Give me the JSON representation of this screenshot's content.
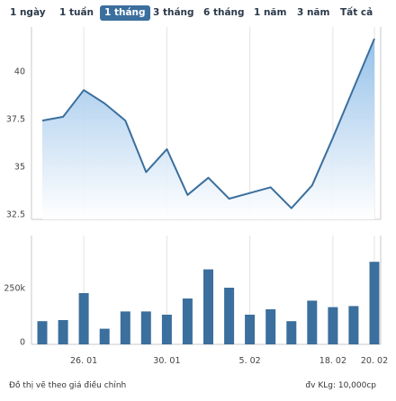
{
  "range_selector": {
    "buttons": [
      "1 ngày",
      "1 tuần",
      "1 tháng",
      "3 tháng",
      "6 tháng",
      "1 năm",
      "3 năm",
      "Tất cả"
    ],
    "active_index": 2
  },
  "colors": {
    "line": "#3b6f9d",
    "area_top": "#8fbde8",
    "area_bottom": "#ffffff",
    "bar": "#3b6f9d",
    "active_button": "#3b6f9d"
  },
  "chart_data": [
    {
      "type": "area",
      "series": [
        {
          "values": [
            37.4,
            37.6,
            39.0,
            38.3,
            37.4,
            34.7,
            35.9,
            33.5,
            34.4,
            33.3,
            33.6,
            33.9,
            32.8,
            34.0,
            36.5,
            39.1,
            41.7
          ]
        }
      ],
      "ylim": [
        32.5,
        42
      ],
      "yticks": [
        32.5,
        35,
        37.5,
        40
      ],
      "ytick_labels": [
        "32.5",
        "35",
        "37.5",
        "40"
      ],
      "grid": "vertical"
    },
    {
      "type": "bar",
      "values": [
        95000,
        100000,
        225000,
        60000,
        140000,
        140000,
        125000,
        200000,
        335000,
        250000,
        125000,
        150000,
        95000,
        190000,
        160000,
        165000,
        370000
      ],
      "ylim": [
        0,
        420000
      ],
      "yticks": [
        0,
        250000
      ],
      "ytick_labels": [
        "0",
        "250k"
      ],
      "xtick_labels": [
        {
          "label": "26. 01",
          "index": 2
        },
        {
          "label": "30. 01",
          "index": 6
        },
        {
          "label": "5. 02",
          "index": 10
        },
        {
          "label": "18. 02",
          "index": 14
        },
        {
          "label": "20. 02",
          "index": 16
        }
      ],
      "grid": "vertical"
    }
  ],
  "footer": {
    "left": "Đồ thị vẽ theo giá điều chỉnh",
    "right": "đv KLg: 10,000cp"
  }
}
